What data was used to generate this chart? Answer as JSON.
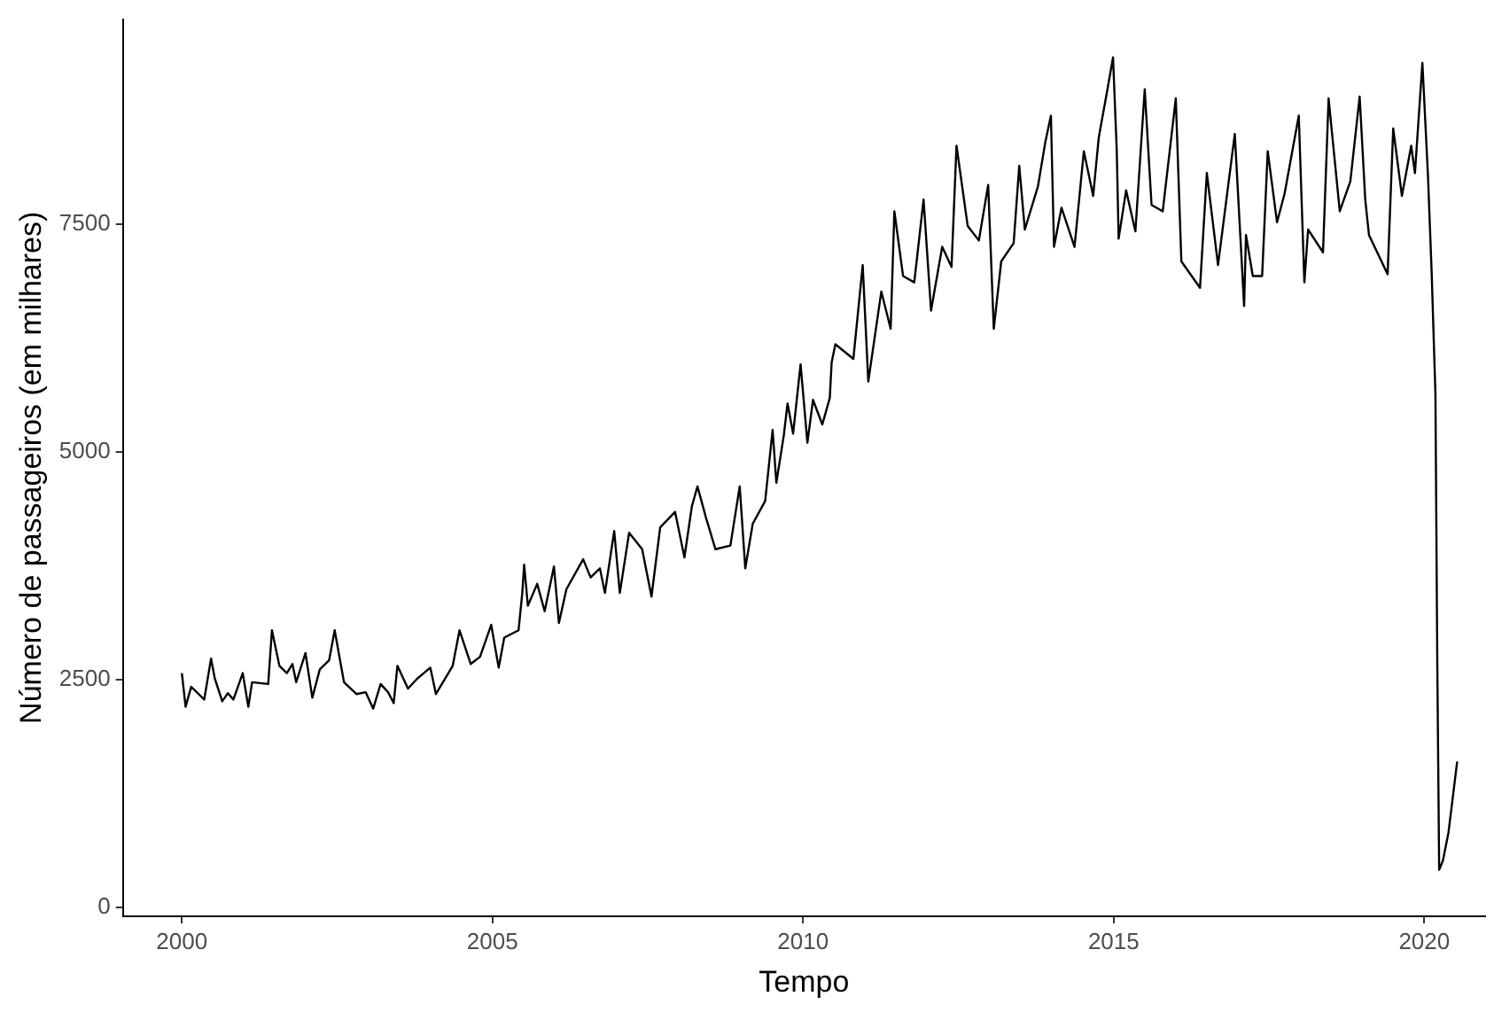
{
  "chart_data": {
    "type": "line",
    "xlabel": "Tempo",
    "ylabel": "Número de passageiros (em milhares)",
    "x": [
      2000.0,
      2000.06,
      2000.15,
      2000.36,
      2000.47,
      2000.53,
      2000.65,
      2000.74,
      2000.83,
      2000.98,
      2001.07,
      2001.13,
      2001.39,
      2001.45,
      2001.57,
      2001.69,
      2001.78,
      2001.84,
      2001.99,
      2002.1,
      2002.22,
      2002.37,
      2002.46,
      2002.61,
      2002.81,
      2002.96,
      2003.08,
      2003.2,
      2003.32,
      2003.41,
      2003.47,
      2003.64,
      2003.79,
      2004.0,
      2004.09,
      2004.36,
      2004.47,
      2004.65,
      2004.8,
      2004.98,
      2005.1,
      2005.19,
      2005.42,
      2005.48,
      2005.51,
      2005.57,
      2005.72,
      2005.84,
      2005.99,
      2006.07,
      2006.19,
      2006.46,
      2006.58,
      2006.73,
      2006.81,
      2006.96,
      2007.05,
      2007.2,
      2007.41,
      2007.56,
      2007.7,
      2007.94,
      2008.09,
      2008.21,
      2008.3,
      2008.44,
      2008.59,
      2008.83,
      2008.98,
      2009.07,
      2009.19,
      2009.39,
      2009.51,
      2009.57,
      2009.69,
      2009.75,
      2009.84,
      2009.96,
      2010.07,
      2010.16,
      2010.31,
      2010.43,
      2010.46,
      2010.52,
      2010.81,
      2010.96,
      2011.05,
      2011.26,
      2011.41,
      2011.47,
      2011.61,
      2011.79,
      2011.94,
      2012.06,
      2012.24,
      2012.39,
      2012.47,
      2012.65,
      2012.83,
      2012.98,
      2013.07,
      2013.19,
      2013.39,
      2013.48,
      2013.57,
      2013.78,
      2013.9,
      2013.99,
      2014.04,
      2014.16,
      2014.37,
      2014.52,
      2014.67,
      2014.76,
      2014.9,
      2014.99,
      2015.05,
      2015.08,
      2015.2,
      2015.35,
      2015.5,
      2015.61,
      2015.79,
      2016.0,
      2016.09,
      2016.39,
      2016.5,
      2016.68,
      2016.95,
      2017.1,
      2017.13,
      2017.24,
      2017.39,
      2017.48,
      2017.63,
      2017.75,
      2017.98,
      2018.07,
      2018.13,
      2018.37,
      2018.46,
      2018.64,
      2018.81,
      2018.96,
      2019.05,
      2019.11,
      2019.41,
      2019.5,
      2019.64,
      2019.79,
      2019.85,
      2019.97,
      2020.06,
      2020.12,
      2020.18,
      2020.21,
      2020.24,
      2020.3,
      2020.39,
      2020.53
    ],
    "series": [
      {
        "color": "#000000",
        "values": [
          2570,
          2200,
          2420,
          2280,
          2730,
          2510,
          2260,
          2350,
          2280,
          2570,
          2200,
          2470,
          2450,
          3040,
          2650,
          2570,
          2670,
          2470,
          2790,
          2300,
          2610,
          2710,
          3040,
          2470,
          2340,
          2360,
          2180,
          2450,
          2360,
          2240,
          2650,
          2400,
          2510,
          2630,
          2340,
          2650,
          3040,
          2670,
          2750,
          3100,
          2630,
          2960,
          3040,
          3450,
          3760,
          3310,
          3550,
          3250,
          3740,
          3120,
          3490,
          3820,
          3620,
          3720,
          3450,
          4130,
          3450,
          4110,
          3930,
          3410,
          4170,
          4340,
          3840,
          4400,
          4620,
          4270,
          3930,
          3970,
          4620,
          3720,
          4210,
          4460,
          5240,
          4660,
          5180,
          5530,
          5200,
          5960,
          5100,
          5570,
          5300,
          5590,
          5980,
          6180,
          6020,
          7050,
          5770,
          6760,
          6350,
          7640,
          6930,
          6860,
          7770,
          6550,
          7250,
          7030,
          8360,
          7480,
          7320,
          7930,
          6350,
          7090,
          7290,
          8140,
          7440,
          7910,
          8400,
          8690,
          7250,
          7680,
          7250,
          8300,
          7810,
          8450,
          8980,
          9330,
          8300,
          7340,
          7870,
          7420,
          8980,
          7710,
          7640,
          8880,
          7090,
          6800,
          8060,
          7050,
          8490,
          6600,
          7380,
          6930,
          6930,
          8300,
          7520,
          7830,
          8690,
          6860,
          7440,
          7190,
          8880,
          7640,
          7970,
          8900,
          7770,
          7380,
          6950,
          8550,
          7810,
          8360,
          8060,
          9270,
          8030,
          6950,
          5630,
          2670,
          410,
          510,
          820,
          1600
        ]
      }
    ],
    "xlim": [
      1999.05,
      2020.98
    ],
    "xticks": [
      2000,
      2005,
      2010,
      2015,
      2020
    ],
    "ylim": [
      -100,
      9750
    ],
    "yticks": [
      0,
      2500,
      5000,
      7500
    ],
    "grid": false,
    "legend": false,
    "marker": "none",
    "line_style": "solid"
  }
}
